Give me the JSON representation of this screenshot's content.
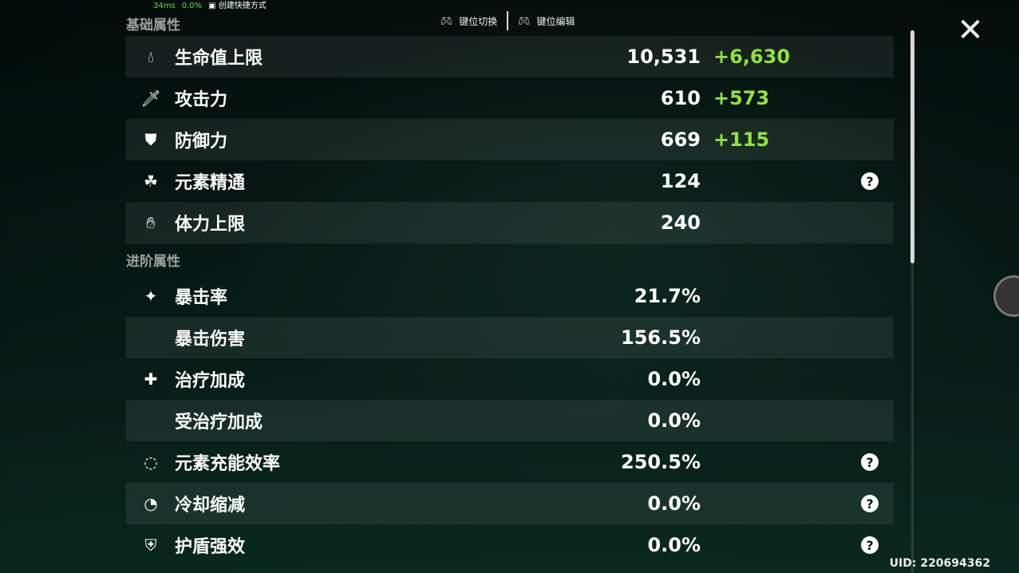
{
  "overlay": {
    "ping": "34ms",
    "loss": "0.0%",
    "shortcut": "创建快捷方式"
  },
  "toolbar": {
    "switch": "键位切换",
    "edit": "键位编辑"
  },
  "sections": {
    "basic": "基础属性",
    "advanced": "进阶属性"
  },
  "basic_stats": [
    {
      "icon": "hp-drop-icon",
      "label": "生命值上限",
      "value": "10,531",
      "bonus": "+6,630"
    },
    {
      "icon": "sword-icon",
      "label": "攻击力",
      "value": "610",
      "bonus": "+573"
    },
    {
      "icon": "shield-icon",
      "label": "防御力",
      "value": "669",
      "bonus": "+115"
    },
    {
      "icon": "elemental-mastery-icon",
      "label": "元素精通",
      "value": "124",
      "help": true
    },
    {
      "icon": "stamina-icon",
      "label": "体力上限",
      "value": "240"
    }
  ],
  "advanced_stats": [
    {
      "icon": "crit-rate-icon",
      "label": "暴击率",
      "value": "21.7%"
    },
    {
      "icon": "",
      "label": "暴击伤害",
      "value": "156.5%"
    },
    {
      "icon": "healing-cross-icon",
      "label": "治疗加成",
      "value": "0.0%"
    },
    {
      "icon": "",
      "label": "受治疗加成",
      "value": "0.0%"
    },
    {
      "icon": "energy-recharge-icon",
      "label": "元素充能效率",
      "value": "250.5%",
      "help": true
    },
    {
      "icon": "cooldown-icon",
      "label": "冷却缩减",
      "value": "0.0%",
      "help": true
    },
    {
      "icon": "shield-strength-icon",
      "label": "护盾强效",
      "value": "0.0%",
      "help": true
    }
  ],
  "uid": "UID: 220694362",
  "colors": {
    "bonus": "#8fe33f"
  }
}
